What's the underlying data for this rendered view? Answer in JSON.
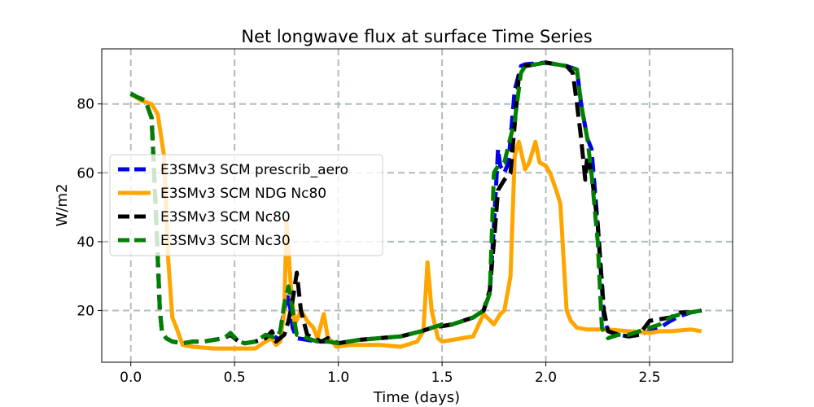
{
  "chart_data": {
    "type": "line",
    "title": "Net longwave flux at surface Time Series",
    "xlabel": "Time (days)",
    "ylabel": "W/m2",
    "xlim": [
      -0.14,
      2.9
    ],
    "ylim": [
      5,
      96
    ],
    "xticks": [
      0.0,
      0.5,
      1.0,
      1.5,
      2.0,
      2.5
    ],
    "xtick_labels": [
      "0.0",
      "0.5",
      "1.0",
      "1.5",
      "2.0",
      "2.5"
    ],
    "yticks": [
      20,
      40,
      60,
      80
    ],
    "ytick_labels": [
      "20",
      "40",
      "60",
      "80"
    ],
    "grid": true,
    "legend_position": "center-left",
    "series": [
      {
        "name": "E3SMv3 SCM prescrib_aero",
        "color": "#0000ee",
        "style": "dashed",
        "x": [
          0.0,
          0.03,
          0.07,
          0.1,
          0.12,
          0.14,
          0.15,
          0.17,
          0.2,
          0.25,
          0.3,
          0.35,
          0.4,
          0.45,
          0.48,
          0.52,
          0.55,
          0.6,
          0.65,
          0.7,
          0.72,
          0.74,
          0.76,
          0.78,
          0.8,
          0.85,
          0.9,
          0.95,
          1.0,
          1.05,
          1.1,
          1.2,
          1.3,
          1.4,
          1.45,
          1.5,
          1.55,
          1.6,
          1.65,
          1.7,
          1.73,
          1.75,
          1.77,
          1.78,
          1.8,
          1.82,
          1.85,
          1.88,
          1.9,
          2.0,
          2.1,
          2.15,
          2.17,
          2.2,
          2.22,
          2.25,
          2.28,
          2.3,
          2.35,
          2.4,
          2.45,
          2.5,
          2.55,
          2.6,
          2.65,
          2.7,
          2.75
        ],
        "y": [
          83,
          82,
          81,
          76,
          50,
          20,
          14,
          12,
          11,
          10.5,
          11,
          11,
          11.5,
          12,
          13,
          11,
          10.5,
          11,
          12,
          12,
          14,
          20,
          25,
          15,
          12,
          11.5,
          11,
          11,
          10.5,
          11,
          11.5,
          12,
          12.5,
          14,
          15,
          15.5,
          16,
          17,
          18,
          20,
          25,
          45,
          67,
          62,
          60,
          63,
          84,
          91,
          91.5,
          92,
          91,
          90,
          80,
          70,
          67,
          45,
          18,
          14,
          13,
          12.5,
          13,
          14,
          15,
          17,
          18.5,
          19.5,
          20
        ]
      },
      {
        "name": "E3SMv3 SCM NDG Nc80",
        "color": "#ffa500",
        "style": "solid",
        "x": [
          0.0,
          0.05,
          0.1,
          0.13,
          0.16,
          0.18,
          0.2,
          0.22,
          0.25,
          0.3,
          0.4,
          0.5,
          0.6,
          0.65,
          0.68,
          0.7,
          0.72,
          0.74,
          0.75,
          0.77,
          0.79,
          0.82,
          0.85,
          0.88,
          0.9,
          0.93,
          0.95,
          0.97,
          0.99,
          1.05,
          1.1,
          1.2,
          1.3,
          1.38,
          1.41,
          1.43,
          1.45,
          1.48,
          1.5,
          1.55,
          1.6,
          1.65,
          1.7,
          1.75,
          1.78,
          1.8,
          1.83,
          1.85,
          1.87,
          1.9,
          1.92,
          1.95,
          1.97,
          2.0,
          2.02,
          2.05,
          2.07,
          2.1,
          2.12,
          2.15,
          2.2,
          2.3,
          2.4,
          2.5,
          2.55,
          2.6,
          2.7,
          2.75
        ],
        "y": [
          83,
          81,
          80,
          77,
          65,
          35,
          18,
          15,
          10,
          9.5,
          9,
          9,
          9,
          11,
          12,
          10,
          11,
          20,
          46,
          28,
          16,
          20,
          17,
          15,
          12,
          19,
          12,
          11,
          9.5,
          10,
          10,
          10,
          9.5,
          11,
          14,
          34,
          20,
          12,
          11,
          11.5,
          12,
          12.5,
          19,
          16,
          19,
          20,
          30,
          65,
          69,
          61,
          63,
          69,
          63,
          62,
          60,
          55,
          51,
          20,
          17,
          15,
          14.5,
          14.5,
          14,
          13.5,
          14,
          14,
          14.5,
          14
        ]
      },
      {
        "name": "E3SMv3 SCM Nc80",
        "color": "#000000",
        "style": "dashed",
        "x": [
          0.0,
          0.03,
          0.07,
          0.1,
          0.12,
          0.14,
          0.15,
          0.17,
          0.2,
          0.25,
          0.3,
          0.35,
          0.4,
          0.45,
          0.48,
          0.52,
          0.55,
          0.6,
          0.65,
          0.68,
          0.7,
          0.72,
          0.74,
          0.76,
          0.78,
          0.8,
          0.82,
          0.85,
          0.88,
          0.92,
          0.95,
          1.0,
          1.05,
          1.1,
          1.2,
          1.3,
          1.4,
          1.45,
          1.5,
          1.55,
          1.6,
          1.65,
          1.7,
          1.73,
          1.75,
          1.77,
          1.8,
          1.83,
          1.87,
          1.9,
          2.0,
          2.1,
          2.13,
          2.15,
          2.17,
          2.19,
          2.2,
          2.22,
          2.25,
          2.28,
          2.3,
          2.35,
          2.4,
          2.45,
          2.5,
          2.55,
          2.6,
          2.65,
          2.7,
          2.75
        ],
        "y": [
          83,
          82,
          81,
          76,
          50,
          20,
          14,
          12,
          11,
          10.5,
          11,
          11,
          11.5,
          12,
          13,
          11,
          10.5,
          11,
          12,
          14,
          11,
          12,
          13,
          17,
          23,
          31,
          20,
          13,
          12,
          11,
          12,
          10.5,
          11,
          11.5,
          12,
          12.5,
          14,
          15,
          15.5,
          16,
          17,
          18,
          20,
          26,
          40,
          55,
          58,
          60,
          88,
          91,
          92,
          91,
          89,
          80,
          70,
          58,
          65,
          60,
          45,
          20,
          14,
          13,
          12.5,
          13,
          17,
          17.5,
          18,
          19.5,
          19.5,
          20
        ]
      },
      {
        "name": "E3SMv3 SCM Nc30",
        "color": "#008000",
        "style": "dashed",
        "x": [
          0.0,
          0.03,
          0.07,
          0.1,
          0.12,
          0.14,
          0.15,
          0.17,
          0.2,
          0.25,
          0.3,
          0.35,
          0.4,
          0.45,
          0.48,
          0.52,
          0.55,
          0.6,
          0.65,
          0.7,
          0.72,
          0.74,
          0.76,
          0.78,
          0.8,
          0.85,
          0.9,
          0.95,
          1.0,
          1.05,
          1.1,
          1.2,
          1.3,
          1.4,
          1.45,
          1.5,
          1.55,
          1.6,
          1.65,
          1.7,
          1.73,
          1.75,
          1.77,
          1.8,
          1.82,
          1.85,
          1.88,
          1.9,
          2.0,
          2.1,
          2.15,
          2.17,
          2.2,
          2.22,
          2.25,
          2.27,
          2.3,
          2.35,
          2.4,
          2.45,
          2.5,
          2.55,
          2.6,
          2.65,
          2.7,
          2.75
        ],
        "y": [
          83,
          82,
          81,
          76,
          50,
          20,
          14,
          12,
          11,
          10.5,
          11,
          11,
          11.5,
          12,
          13.5,
          11,
          10.5,
          11,
          13,
          12,
          14,
          22,
          27,
          20,
          13,
          12,
          11,
          11,
          10.5,
          11,
          11.5,
          12,
          12.5,
          14,
          15,
          16,
          16,
          17,
          18,
          20,
          25,
          60,
          62,
          63,
          68,
          75,
          89,
          91,
          92,
          91,
          90,
          80,
          70,
          60,
          40,
          15,
          12,
          13,
          13,
          14,
          15,
          16,
          18,
          19,
          19.5,
          20
        ]
      }
    ]
  }
}
